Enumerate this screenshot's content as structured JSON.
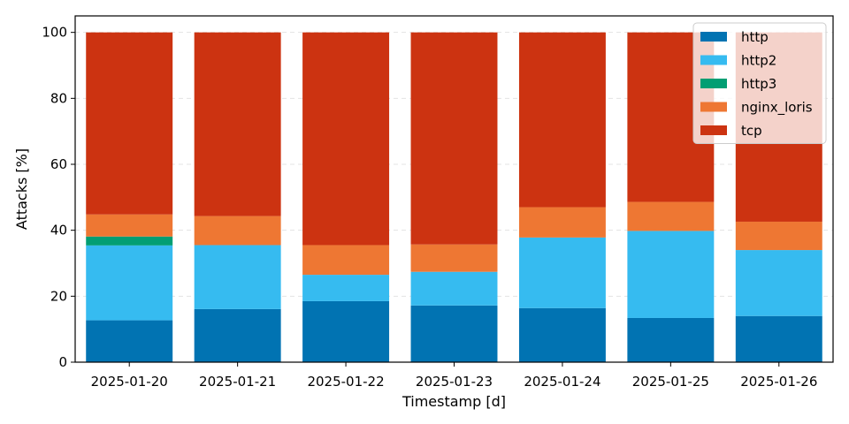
{
  "chart_data": {
    "type": "bar",
    "stacked": true,
    "xlabel": "Timestamp [d]",
    "ylabel": "Attacks [%]",
    "ylim": [
      0,
      105
    ],
    "yticks": [
      0,
      20,
      40,
      60,
      80,
      100
    ],
    "grid": "y-dashed",
    "legend": "top-right",
    "categories": [
      "2025-01-20",
      "2025-01-21",
      "2025-01-22",
      "2025-01-23",
      "2025-01-24",
      "2025-01-25",
      "2025-01-26"
    ],
    "series": [
      {
        "name": "http",
        "color": "#0173b2",
        "values": [
          12.7,
          16.1,
          18.5,
          17.2,
          16.4,
          13.4,
          14.0
        ]
      },
      {
        "name": "http2",
        "color": "#36bbf0",
        "values": [
          22.7,
          19.4,
          8.0,
          10.2,
          21.4,
          26.4,
          20.0
        ]
      },
      {
        "name": "http3",
        "color": "#029e73",
        "values": [
          2.7,
          0.0,
          0.0,
          0.0,
          0.0,
          0.0,
          0.0
        ]
      },
      {
        "name": "nginx_loris",
        "color": "#ee7733",
        "values": [
          6.7,
          8.8,
          9.0,
          8.3,
          9.2,
          8.8,
          8.6
        ]
      },
      {
        "name": "tcp",
        "color": "#cc3311",
        "values": [
          55.2,
          55.7,
          64.5,
          64.3,
          53.0,
          51.4,
          57.4
        ]
      }
    ]
  }
}
